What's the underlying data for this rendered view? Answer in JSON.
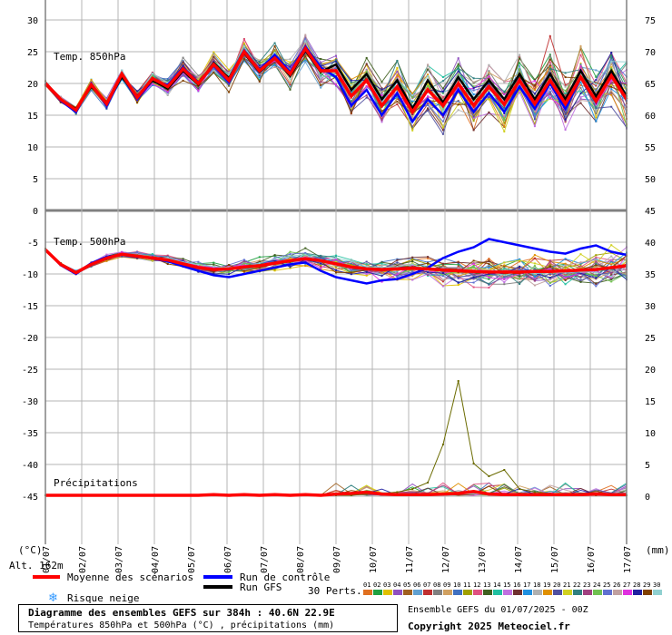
{
  "chart_data": {
    "type": "line",
    "title": "Diagramme des ensembles GEFS sur 384h : 40.6N 22.9E",
    "subtitle": "Températures 850hPa et 500hPa (°C) , précipitations (mm)",
    "run_info": "Ensemble GEFS du 01/07/2025 - 00Z",
    "copyright": "Copyright 2025 Meteociel.fr",
    "altitude": "Alt. 162m",
    "left_unit": "(°C)",
    "right_unit": "(mm)",
    "left_ticks": [
      30,
      25,
      20,
      15,
      10,
      5,
      0,
      -5,
      -10,
      -15,
      -20,
      -25,
      -30,
      -35,
      -40,
      -45
    ],
    "right_ticks": [
      75,
      70,
      65,
      60,
      55,
      50,
      45,
      40,
      35,
      30,
      25,
      20,
      15,
      10,
      5,
      0
    ],
    "ylim_left": [
      -52,
      32
    ],
    "x_range_days": [
      0,
      16
    ],
    "x_ticks": [
      "01/07",
      "02/07",
      "03/07",
      "04/07",
      "05/07",
      "06/07",
      "07/07",
      "08/07",
      "09/07",
      "10/07",
      "11/07",
      "12/07",
      "13/07",
      "14/07",
      "15/07",
      "16/07",
      "17/07"
    ],
    "panel_labels": [
      "Temp. 850hPa",
      "Temp. 500hPa",
      "Précipitations"
    ],
    "legend": {
      "mean": {
        "label": "Moyenne des scénarios",
        "color": "#ff0000"
      },
      "control": {
        "label": "Run de contrôle",
        "color": "#0000ff"
      },
      "gfs": {
        "label": "Run GFS",
        "color": "#000000"
      },
      "snow": {
        "label": "Risque neige",
        "icon": "snowflake-icon",
        "color": "#3399ff"
      },
      "perts_label": "30 Perts.",
      "perts": [
        "01",
        "02",
        "03",
        "04",
        "05",
        "06",
        "07",
        "08",
        "09",
        "10",
        "11",
        "12",
        "13",
        "14",
        "15",
        "16",
        "17",
        "18",
        "19",
        "20",
        "21",
        "22",
        "23",
        "24",
        "25",
        "26",
        "27",
        "28",
        "29",
        "30"
      ],
      "pert_colors": [
        "#e07020",
        "#20a040",
        "#e0c000",
        "#9050c0",
        "#a06020",
        "#60a0d0",
        "#c03030",
        "#808080",
        "#d0a060",
        "#4070c0",
        "#a0a000",
        "#e05080",
        "#406020",
        "#20c0a0",
        "#c070e0",
        "#703030",
        "#2090e0",
        "#b0b0b0",
        "#e09000",
        "#5050a0",
        "#d0d020",
        "#308080",
        "#a04080",
        "#70c050",
        "#6070d0",
        "#c0a0a0",
        "#e030e0",
        "#2020a0",
        "#804000",
        "#90d0d0"
      ]
    },
    "series_t850": {
      "mean": [
        20,
        17.5,
        15.8,
        19.8,
        16.8,
        21.5,
        17.8,
        20.8,
        19.5,
        22.3,
        20,
        23,
        20.5,
        25,
        22,
        24,
        21.5,
        25.5,
        22,
        22,
        18,
        20.5,
        16.5,
        19.5,
        15.5,
        19,
        16.5,
        20,
        16.5,
        19.5,
        16.7,
        20.5,
        16.8,
        20.5,
        16.8,
        21,
        17.2,
        21.2,
        17.5
      ],
      "control": [
        20,
        17.3,
        15.5,
        20,
        16.5,
        21.2,
        17.5,
        20.5,
        19.8,
        22.5,
        20.2,
        22.8,
        20.2,
        25.2,
        22.2,
        24.5,
        21.8,
        25.8,
        22.5,
        21,
        16.5,
        19,
        15,
        18.5,
        14,
        17.5,
        15,
        19,
        15.5,
        18.5,
        15.5,
        19.5,
        16,
        20,
        16,
        21,
        17,
        21.5,
        17.5
      ],
      "gfs": [
        20,
        17.5,
        16,
        19.5,
        17,
        21,
        18,
        20.5,
        19.2,
        22,
        19.8,
        23.2,
        20.8,
        24.8,
        21.8,
        24,
        21.2,
        25.2,
        21.8,
        23,
        19,
        21.5,
        17.5,
        20.5,
        16,
        20.5,
        17,
        21,
        17.5,
        20.5,
        17.5,
        21.5,
        17.5,
        21.5,
        17.5,
        22,
        18,
        22,
        18
      ]
    },
    "series_t500": {
      "mean": [
        -6.2,
        -8.5,
        -9.8,
        -8.5,
        -7.5,
        -6.9,
        -7.2,
        -7.5,
        -7.8,
        -8.4,
        -9,
        -9.3,
        -9.2,
        -8.9,
        -8.7,
        -8.3,
        -7.9,
        -7.6,
        -7.9,
        -8.4,
        -8.9,
        -9.2,
        -9.3,
        -9.2,
        -9.1,
        -9.2,
        -9.4,
        -9.5,
        -9.6,
        -9.7,
        -9.7,
        -9.7,
        -9.6,
        -9.6,
        -9.5,
        -9.4,
        -9.3,
        -9,
        -8.7
      ],
      "control": [
        -6.2,
        -8.6,
        -10,
        -8.3,
        -7.3,
        -6.9,
        -7.2,
        -7.6,
        -8,
        -8.8,
        -9.5,
        -10.2,
        -10.5,
        -10,
        -9.5,
        -9,
        -8.5,
        -8.2,
        -9.5,
        -10.5,
        -11,
        -11.5,
        -11,
        -10.8,
        -10,
        -9,
        -7.5,
        -6.5,
        -5.8,
        -4.5,
        -5,
        -5.5,
        -6,
        -6.5,
        -6.8,
        -6,
        -5.5,
        -6.5,
        -7
      ]
    },
    "series_precip_mm": {
      "mean": [
        0,
        0,
        0,
        0,
        0,
        0,
        0,
        0,
        0,
        0,
        0,
        0.1,
        0,
        0.1,
        0,
        0.1,
        0,
        0.1,
        0,
        0.2,
        0.3,
        0.5,
        0.2,
        0.1,
        0.1,
        0.1,
        0.2,
        0.3,
        0.6,
        0.2,
        0.1,
        0.1,
        0.1,
        0.1,
        0.1,
        0.1,
        0.2,
        0.1,
        0.1
      ],
      "spike_pert": [
        0,
        0,
        0,
        0,
        0,
        0,
        0,
        0,
        0,
        0,
        0,
        0,
        0,
        0,
        0,
        0,
        0,
        0,
        0,
        0,
        0,
        0.2,
        0.3,
        0.5,
        1,
        2,
        8,
        18,
        5,
        3,
        4,
        1,
        0.5,
        0.3,
        0.2,
        0.1,
        0,
        0,
        0
      ]
    }
  }
}
